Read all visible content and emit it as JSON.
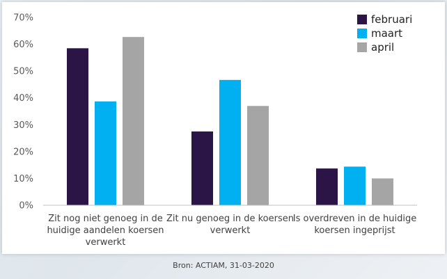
{
  "chart_data": {
    "type": "bar",
    "categories": [
      [
        "Zit nog niet genoeg in de",
        "huidige aandelen koersen",
        "verwerkt"
      ],
      [
        "Zit nu genoeg in de koersen",
        "verwerkt"
      ],
      [
        "Is overdreven in de huidige",
        "koersen ingeprijst"
      ]
    ],
    "series": [
      {
        "name": "februari",
        "color": "#2b1446",
        "values": [
          58.5,
          27.5,
          13.7
        ]
      },
      {
        "name": "maart",
        "color": "#00b0f0",
        "values": [
          38.7,
          46.7,
          14.4
        ]
      },
      {
        "name": "april",
        "color": "#a5a5a5",
        "values": [
          62.7,
          37.0,
          10.0
        ]
      }
    ],
    "ylim": [
      0,
      70
    ],
    "yticks": [
      "0%",
      "10%",
      "20%",
      "30%",
      "40%",
      "50%",
      "60%",
      "70%"
    ],
    "legend_position": "top-right",
    "grid": false
  },
  "source_text": "Bron: ACTIAM, 31-03-2020"
}
